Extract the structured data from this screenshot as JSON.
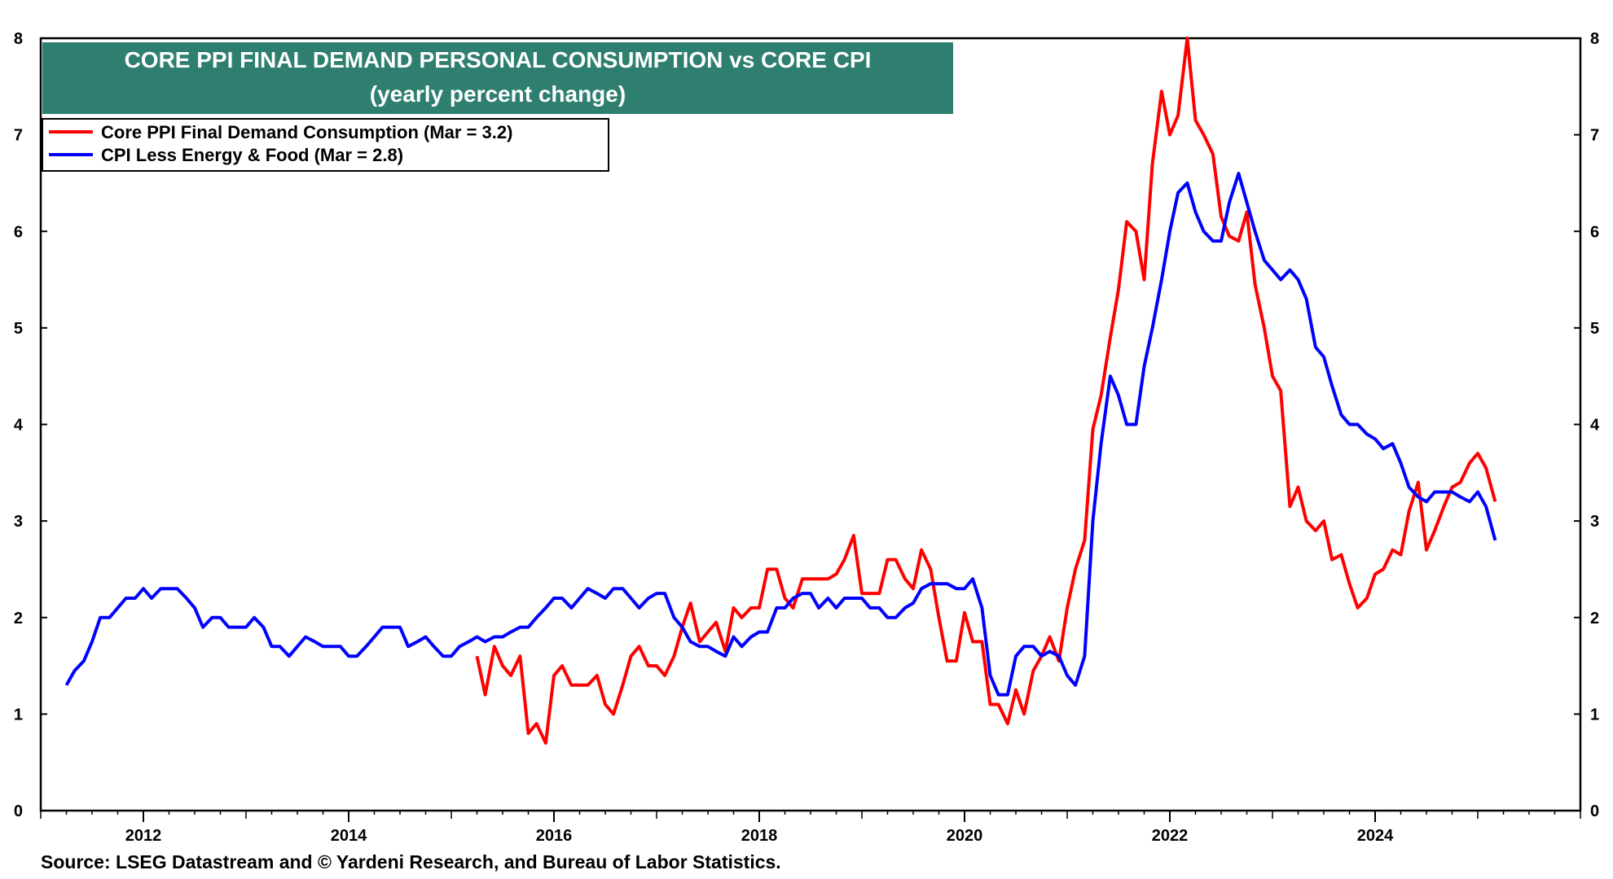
{
  "chart_data": {
    "type": "line",
    "title": "CORE PPI FINAL DEMAND PERSONAL CONSUMPTION vs CORE CPI",
    "subtitle": "(yearly percent change)",
    "ylim": [
      0,
      8
    ],
    "yticks": [
      0,
      1,
      2,
      3,
      4,
      5,
      6,
      7,
      8
    ],
    "xlim": [
      2011.0,
      2026.0
    ],
    "xticks": [
      2012,
      2014,
      2016,
      2018,
      2020,
      2022,
      2024
    ],
    "xtick_labels": [
      "2012",
      "2014",
      "2016",
      "2018",
      "2020",
      "2022",
      "2024"
    ],
    "legend_position": "top-left",
    "series": [
      {
        "name": "Core PPI  Final Demand Consumption (Mar = 3.2)",
        "color": "#ff0000",
        "points": [
          [
            2015.25,
            1.6
          ],
          [
            2015.33,
            1.2
          ],
          [
            2015.42,
            1.7
          ],
          [
            2015.5,
            1.5
          ],
          [
            2015.58,
            1.4
          ],
          [
            2015.67,
            1.6
          ],
          [
            2015.75,
            0.8
          ],
          [
            2015.83,
            0.9
          ],
          [
            2015.92,
            0.7
          ],
          [
            2016.0,
            1.4
          ],
          [
            2016.08,
            1.5
          ],
          [
            2016.17,
            1.3
          ],
          [
            2016.25,
            1.3
          ],
          [
            2016.33,
            1.3
          ],
          [
            2016.42,
            1.4
          ],
          [
            2016.5,
            1.1
          ],
          [
            2016.58,
            1.0
          ],
          [
            2016.67,
            1.3
          ],
          [
            2016.75,
            1.6
          ],
          [
            2016.83,
            1.7
          ],
          [
            2016.92,
            1.5
          ],
          [
            2017.0,
            1.5
          ],
          [
            2017.08,
            1.4
          ],
          [
            2017.17,
            1.6
          ],
          [
            2017.25,
            1.9
          ],
          [
            2017.33,
            2.15
          ],
          [
            2017.42,
            1.75
          ],
          [
            2017.5,
            1.85
          ],
          [
            2017.58,
            1.95
          ],
          [
            2017.67,
            1.65
          ],
          [
            2017.75,
            2.1
          ],
          [
            2017.83,
            2.0
          ],
          [
            2017.92,
            2.1
          ],
          [
            2018.0,
            2.1
          ],
          [
            2018.08,
            2.5
          ],
          [
            2018.17,
            2.5
          ],
          [
            2018.25,
            2.2
          ],
          [
            2018.33,
            2.1
          ],
          [
            2018.42,
            2.4
          ],
          [
            2018.5,
            2.4
          ],
          [
            2018.58,
            2.4
          ],
          [
            2018.67,
            2.4
          ],
          [
            2018.75,
            2.45
          ],
          [
            2018.83,
            2.6
          ],
          [
            2018.92,
            2.85
          ],
          [
            2019.0,
            2.25
          ],
          [
            2019.08,
            2.25
          ],
          [
            2019.17,
            2.25
          ],
          [
            2019.25,
            2.6
          ],
          [
            2019.33,
            2.6
          ],
          [
            2019.42,
            2.4
          ],
          [
            2019.5,
            2.3
          ],
          [
            2019.58,
            2.7
          ],
          [
            2019.67,
            2.5
          ],
          [
            2019.75,
            2.0
          ],
          [
            2019.83,
            1.55
          ],
          [
            2019.92,
            1.55
          ],
          [
            2020.0,
            2.05
          ],
          [
            2020.08,
            1.75
          ],
          [
            2020.17,
            1.75
          ],
          [
            2020.25,
            1.1
          ],
          [
            2020.33,
            1.1
          ],
          [
            2020.42,
            0.9
          ],
          [
            2020.5,
            1.25
          ],
          [
            2020.58,
            1.0
          ],
          [
            2020.67,
            1.45
          ],
          [
            2020.75,
            1.6
          ],
          [
            2020.83,
            1.8
          ],
          [
            2020.92,
            1.55
          ],
          [
            2021.0,
            2.1
          ],
          [
            2021.08,
            2.5
          ],
          [
            2021.17,
            2.8
          ],
          [
            2021.25,
            3.95
          ],
          [
            2021.33,
            4.3
          ],
          [
            2021.42,
            4.9
          ],
          [
            2021.5,
            5.4
          ],
          [
            2021.58,
            6.1
          ],
          [
            2021.67,
            6.0
          ],
          [
            2021.75,
            5.5
          ],
          [
            2021.83,
            6.7
          ],
          [
            2021.92,
            7.45
          ],
          [
            2022.0,
            7.0
          ],
          [
            2022.08,
            7.2
          ],
          [
            2022.17,
            8.0
          ],
          [
            2022.25,
            7.15
          ],
          [
            2022.33,
            7.0
          ],
          [
            2022.42,
            6.8
          ],
          [
            2022.5,
            6.15
          ],
          [
            2022.58,
            5.95
          ],
          [
            2022.67,
            5.9
          ],
          [
            2022.75,
            6.2
          ],
          [
            2022.83,
            5.45
          ],
          [
            2022.92,
            5.0
          ],
          [
            2023.0,
            4.5
          ],
          [
            2023.08,
            4.35
          ],
          [
            2023.17,
            3.15
          ],
          [
            2023.25,
            3.35
          ],
          [
            2023.33,
            3.0
          ],
          [
            2023.42,
            2.9
          ],
          [
            2023.5,
            3.0
          ],
          [
            2023.58,
            2.6
          ],
          [
            2023.67,
            2.65
          ],
          [
            2023.75,
            2.35
          ],
          [
            2023.83,
            2.1
          ],
          [
            2023.92,
            2.2
          ],
          [
            2024.0,
            2.45
          ],
          [
            2024.08,
            2.5
          ],
          [
            2024.17,
            2.7
          ],
          [
            2024.25,
            2.65
          ],
          [
            2024.33,
            3.1
          ],
          [
            2024.42,
            3.4
          ],
          [
            2024.5,
            2.7
          ],
          [
            2024.58,
            2.9
          ],
          [
            2024.67,
            3.15
          ],
          [
            2024.75,
            3.35
          ],
          [
            2024.83,
            3.4
          ],
          [
            2024.92,
            3.6
          ],
          [
            2025.0,
            3.7
          ],
          [
            2025.08,
            3.55
          ],
          [
            2025.17,
            3.2
          ]
        ]
      },
      {
        "name": "CPI Less Energy & Food (Mar = 2.8)",
        "color": "#0000ff",
        "points": [
          [
            2011.25,
            1.3
          ],
          [
            2011.33,
            1.45
          ],
          [
            2011.42,
            1.55
          ],
          [
            2011.5,
            1.75
          ],
          [
            2011.58,
            2.0
          ],
          [
            2011.67,
            2.0
          ],
          [
            2011.75,
            2.1
          ],
          [
            2011.83,
            2.2
          ],
          [
            2011.92,
            2.2
          ],
          [
            2012.0,
            2.3
          ],
          [
            2012.08,
            2.2
          ],
          [
            2012.17,
            2.3
          ],
          [
            2012.25,
            2.3
          ],
          [
            2012.33,
            2.3
          ],
          [
            2012.42,
            2.2
          ],
          [
            2012.5,
            2.1
          ],
          [
            2012.58,
            1.9
          ],
          [
            2012.67,
            2.0
          ],
          [
            2012.75,
            2.0
          ],
          [
            2012.83,
            1.9
          ],
          [
            2012.92,
            1.9
          ],
          [
            2013.0,
            1.9
          ],
          [
            2013.08,
            2.0
          ],
          [
            2013.17,
            1.9
          ],
          [
            2013.25,
            1.7
          ],
          [
            2013.33,
            1.7
          ],
          [
            2013.42,
            1.6
          ],
          [
            2013.5,
            1.7
          ],
          [
            2013.58,
            1.8
          ],
          [
            2013.67,
            1.75
          ],
          [
            2013.75,
            1.7
          ],
          [
            2013.83,
            1.7
          ],
          [
            2013.92,
            1.7
          ],
          [
            2014.0,
            1.6
          ],
          [
            2014.08,
            1.6
          ],
          [
            2014.17,
            1.7
          ],
          [
            2014.25,
            1.8
          ],
          [
            2014.33,
            1.9
          ],
          [
            2014.42,
            1.9
          ],
          [
            2014.5,
            1.9
          ],
          [
            2014.58,
            1.7
          ],
          [
            2014.67,
            1.75
          ],
          [
            2014.75,
            1.8
          ],
          [
            2014.83,
            1.7
          ],
          [
            2014.92,
            1.6
          ],
          [
            2015.0,
            1.6
          ],
          [
            2015.08,
            1.7
          ],
          [
            2015.17,
            1.75
          ],
          [
            2015.25,
            1.8
          ],
          [
            2015.33,
            1.75
          ],
          [
            2015.42,
            1.8
          ],
          [
            2015.5,
            1.8
          ],
          [
            2015.58,
            1.85
          ],
          [
            2015.67,
            1.9
          ],
          [
            2015.75,
            1.9
          ],
          [
            2015.83,
            2.0
          ],
          [
            2015.92,
            2.1
          ],
          [
            2016.0,
            2.2
          ],
          [
            2016.08,
            2.2
          ],
          [
            2016.17,
            2.1
          ],
          [
            2016.25,
            2.2
          ],
          [
            2016.33,
            2.3
          ],
          [
            2016.42,
            2.25
          ],
          [
            2016.5,
            2.2
          ],
          [
            2016.58,
            2.3
          ],
          [
            2016.67,
            2.3
          ],
          [
            2016.75,
            2.2
          ],
          [
            2016.83,
            2.1
          ],
          [
            2016.92,
            2.2
          ],
          [
            2017.0,
            2.25
          ],
          [
            2017.08,
            2.25
          ],
          [
            2017.17,
            2.0
          ],
          [
            2017.25,
            1.9
          ],
          [
            2017.33,
            1.75
          ],
          [
            2017.42,
            1.7
          ],
          [
            2017.5,
            1.7
          ],
          [
            2017.58,
            1.65
          ],
          [
            2017.67,
            1.6
          ],
          [
            2017.75,
            1.8
          ],
          [
            2017.83,
            1.7
          ],
          [
            2017.92,
            1.8
          ],
          [
            2018.0,
            1.85
          ],
          [
            2018.08,
            1.85
          ],
          [
            2018.17,
            2.1
          ],
          [
            2018.25,
            2.1
          ],
          [
            2018.33,
            2.2
          ],
          [
            2018.42,
            2.25
          ],
          [
            2018.5,
            2.25
          ],
          [
            2018.58,
            2.1
          ],
          [
            2018.67,
            2.2
          ],
          [
            2018.75,
            2.1
          ],
          [
            2018.83,
            2.2
          ],
          [
            2018.92,
            2.2
          ],
          [
            2019.0,
            2.2
          ],
          [
            2019.08,
            2.1
          ],
          [
            2019.17,
            2.1
          ],
          [
            2019.25,
            2.0
          ],
          [
            2019.33,
            2.0
          ],
          [
            2019.42,
            2.1
          ],
          [
            2019.5,
            2.15
          ],
          [
            2019.58,
            2.3
          ],
          [
            2019.67,
            2.35
          ],
          [
            2019.75,
            2.35
          ],
          [
            2019.83,
            2.35
          ],
          [
            2019.92,
            2.3
          ],
          [
            2020.0,
            2.3
          ],
          [
            2020.08,
            2.4
          ],
          [
            2020.17,
            2.1
          ],
          [
            2020.25,
            1.4
          ],
          [
            2020.33,
            1.2
          ],
          [
            2020.42,
            1.2
          ],
          [
            2020.5,
            1.6
          ],
          [
            2020.58,
            1.7
          ],
          [
            2020.67,
            1.7
          ],
          [
            2020.75,
            1.6
          ],
          [
            2020.83,
            1.65
          ],
          [
            2020.92,
            1.6
          ],
          [
            2021.0,
            1.4
          ],
          [
            2021.08,
            1.3
          ],
          [
            2021.17,
            1.6
          ],
          [
            2021.25,
            3.0
          ],
          [
            2021.33,
            3.8
          ],
          [
            2021.42,
            4.5
          ],
          [
            2021.5,
            4.3
          ],
          [
            2021.58,
            4.0
          ],
          [
            2021.67,
            4.0
          ],
          [
            2021.75,
            4.6
          ],
          [
            2021.83,
            5.0
          ],
          [
            2021.92,
            5.5
          ],
          [
            2022.0,
            6.0
          ],
          [
            2022.08,
            6.4
          ],
          [
            2022.17,
            6.5
          ],
          [
            2022.25,
            6.2
          ],
          [
            2022.33,
            6.0
          ],
          [
            2022.42,
            5.9
          ],
          [
            2022.5,
            5.9
          ],
          [
            2022.58,
            6.3
          ],
          [
            2022.67,
            6.6
          ],
          [
            2022.75,
            6.3
          ],
          [
            2022.83,
            6.0
          ],
          [
            2022.92,
            5.7
          ],
          [
            2023.0,
            5.6
          ],
          [
            2023.08,
            5.5
          ],
          [
            2023.17,
            5.6
          ],
          [
            2023.25,
            5.5
          ],
          [
            2023.33,
            5.3
          ],
          [
            2023.42,
            4.8
          ],
          [
            2023.5,
            4.7
          ],
          [
            2023.58,
            4.4
          ],
          [
            2023.67,
            4.1
          ],
          [
            2023.75,
            4.0
          ],
          [
            2023.83,
            4.0
          ],
          [
            2023.92,
            3.9
          ],
          [
            2024.0,
            3.85
          ],
          [
            2024.08,
            3.75
          ],
          [
            2024.17,
            3.8
          ],
          [
            2024.25,
            3.6
          ],
          [
            2024.33,
            3.35
          ],
          [
            2024.42,
            3.25
          ],
          [
            2024.5,
            3.2
          ],
          [
            2024.58,
            3.3
          ],
          [
            2024.67,
            3.3
          ],
          [
            2024.75,
            3.3
          ],
          [
            2024.83,
            3.25
          ],
          [
            2024.92,
            3.2
          ],
          [
            2025.0,
            3.3
          ],
          [
            2025.08,
            3.15
          ],
          [
            2025.17,
            2.8
          ]
        ]
      }
    ]
  },
  "title_box": {
    "line1": "CORE PPI FINAL DEMAND PERSONAL CONSUMPTION vs CORE CPI",
    "line2": "(yearly percent change)",
    "bg_color": "#2e7f6f"
  },
  "legend": {
    "item1": "Core PPI  Final Demand Consumption (Mar = 3.2)",
    "item2": "CPI Less Energy & Food (Mar = 2.8)"
  },
  "source": "Source: LSEG Datastream and © Yardeni Research, and Bureau of Labor Statistics."
}
